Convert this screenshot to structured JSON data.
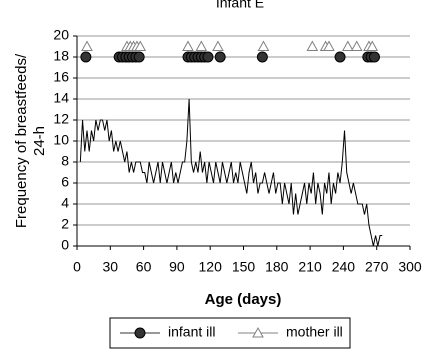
{
  "chart_data": {
    "type": "line",
    "title": "Infant E",
    "xlabel": "Age (days)",
    "ylabel": [
      "Frequency of breastfeeds/",
      "24-h"
    ],
    "xlim": [
      0,
      300
    ],
    "xticks": [
      0,
      30,
      60,
      90,
      120,
      150,
      180,
      210,
      240,
      270,
      300
    ],
    "ylim": [
      0,
      20
    ],
    "yticks": [
      0,
      2,
      4,
      6,
      8,
      10,
      12,
      14,
      16,
      18,
      20
    ],
    "grid": true,
    "series": [
      {
        "color": "#000000",
        "line": true,
        "marker": "none",
        "x": [
          3,
          5,
          7,
          9,
          11,
          13,
          15,
          17,
          19,
          21,
          23,
          25,
          27,
          29,
          31,
          33,
          35,
          37,
          39,
          41,
          43,
          45,
          47,
          49,
          51,
          53,
          55,
          57,
          59,
          61,
          63,
          65,
          67,
          69,
          71,
          73,
          75,
          77,
          79,
          81,
          83,
          85,
          87,
          89,
          91,
          93,
          95,
          97,
          99,
          101,
          103,
          105,
          107,
          109,
          111,
          113,
          115,
          117,
          119,
          121,
          123,
          125,
          127,
          129,
          131,
          133,
          135,
          137,
          139,
          141,
          143,
          145,
          147,
          149,
          151,
          153,
          155,
          157,
          159,
          161,
          163,
          165,
          167,
          169,
          171,
          173,
          175,
          177,
          179,
          181,
          183,
          185,
          187,
          189,
          191,
          193,
          195,
          197,
          199,
          201,
          203,
          205,
          207,
          209,
          211,
          213,
          215,
          217,
          219,
          221,
          223,
          225,
          227,
          229,
          231,
          233,
          235,
          237,
          239,
          241,
          243,
          245,
          247,
          249,
          251,
          253,
          255,
          257,
          259,
          261,
          263,
          265,
          267,
          269,
          271,
          273,
          275
        ],
        "values": [
          8,
          12,
          9,
          11,
          9,
          11,
          10,
          12,
          11,
          12,
          12,
          11,
          12,
          10,
          11,
          9,
          10,
          9,
          10,
          9,
          8,
          9,
          7,
          8,
          7,
          8,
          8,
          8,
          7,
          7,
          6,
          8,
          7,
          6,
          7,
          8,
          6,
          8,
          7,
          6,
          7,
          8,
          6,
          7,
          6,
          7,
          8,
          8,
          10,
          14,
          8,
          7,
          8,
          7,
          9,
          7,
          8,
          6,
          8,
          7,
          6,
          8,
          7,
          6,
          8,
          7,
          6,
          7,
          8,
          6,
          7,
          6,
          8,
          7,
          6,
          5,
          7,
          8,
          6,
          7,
          5,
          6,
          6,
          7,
          6,
          5,
          6,
          7,
          5,
          6,
          6,
          4,
          6,
          5,
          4,
          6,
          3,
          5,
          3,
          4,
          5,
          6,
          4,
          6,
          5,
          7,
          4,
          6,
          5,
          3,
          6,
          5,
          7,
          4,
          6,
          5,
          7,
          6,
          8,
          11,
          7,
          6,
          5,
          6,
          5,
          4,
          4,
          4,
          3,
          4,
          2,
          1,
          0,
          1,
          0,
          1,
          1
        ]
      },
      {
        "name": "infant ill",
        "color": "#333333",
        "line": false,
        "marker": "circle",
        "x": [
          8,
          38,
          41,
          44,
          47,
          50,
          53,
          56,
          100,
          103,
          106,
          109,
          112,
          115,
          118,
          129,
          167,
          237,
          262,
          265,
          268
        ],
        "values": [
          18,
          18,
          18,
          18,
          18,
          18,
          18,
          18,
          18,
          18,
          18,
          18,
          18,
          18,
          18,
          18,
          18,
          18,
          18,
          18,
          18
        ]
      },
      {
        "name": "mother ill",
        "color": "#808080",
        "line": false,
        "marker": "triangle",
        "x": [
          9,
          45,
          48,
          51,
          54,
          57,
          100,
          112,
          127,
          168,
          212,
          224,
          227,
          244,
          252,
          263,
          266
        ],
        "values": [
          19,
          19,
          19,
          19,
          19,
          19,
          19,
          19,
          19,
          19,
          19,
          19,
          19,
          19,
          19,
          19,
          19
        ]
      }
    ]
  }
}
